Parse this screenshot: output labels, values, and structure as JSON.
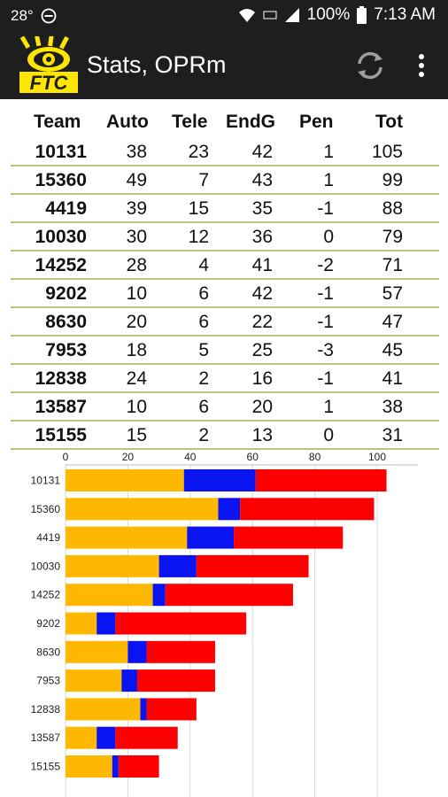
{
  "status_bar": {
    "temperature": "28°",
    "battery": "100%",
    "time": "7:13 AM"
  },
  "app_bar": {
    "logo_text": "FTC",
    "title": "Stats, OPRm",
    "refresh_icon": "refresh-icon",
    "menu_icon": "more-vert-icon"
  },
  "table": {
    "headers": [
      "Team",
      "Auto",
      "Tele",
      "EndG",
      "Pen",
      "Tot"
    ],
    "rows": [
      {
        "team": "10131",
        "auto": "38",
        "tele": "23",
        "endg": "42",
        "pen": "1",
        "tot": "105"
      },
      {
        "team": "15360",
        "auto": "49",
        "tele": "7",
        "endg": "43",
        "pen": "1",
        "tot": "99"
      },
      {
        "team": "4419",
        "auto": "39",
        "tele": "15",
        "endg": "35",
        "pen": "-1",
        "tot": "88"
      },
      {
        "team": "10030",
        "auto": "30",
        "tele": "12",
        "endg": "36",
        "pen": "0",
        "tot": "79"
      },
      {
        "team": "14252",
        "auto": "28",
        "tele": "4",
        "endg": "41",
        "pen": "-2",
        "tot": "71"
      },
      {
        "team": "9202",
        "auto": "10",
        "tele": "6",
        "endg": "42",
        "pen": "-1",
        "tot": "57"
      },
      {
        "team": "8630",
        "auto": "20",
        "tele": "6",
        "endg": "22",
        "pen": "-1",
        "tot": "47"
      },
      {
        "team": "7953",
        "auto": "18",
        "tele": "5",
        "endg": "25",
        "pen": "-3",
        "tot": "45"
      },
      {
        "team": "12838",
        "auto": "24",
        "tele": "2",
        "endg": "16",
        "pen": "-1",
        "tot": "41"
      },
      {
        "team": "13587",
        "auto": "10",
        "tele": "6",
        "endg": "20",
        "pen": "1",
        "tot": "38"
      },
      {
        "team": "15155",
        "auto": "15",
        "tele": "2",
        "endg": "13",
        "pen": "0",
        "tot": "31"
      }
    ]
  },
  "chart_data": {
    "type": "bar",
    "orientation": "horizontal",
    "stacked": true,
    "categories": [
      "10131",
      "15360",
      "4419",
      "10030",
      "14252",
      "9202",
      "8630",
      "7953",
      "12838",
      "13587",
      "15155"
    ],
    "series": [
      {
        "values": [
          38,
          49,
          39,
          30,
          28,
          10,
          20,
          18,
          24,
          10,
          15
        ],
        "color": "#ffb800"
      },
      {
        "values": [
          23,
          7,
          15,
          12,
          4,
          6,
          6,
          5,
          2,
          6,
          2
        ],
        "color": "#0a14f0"
      },
      {
        "values": [
          42,
          43,
          35,
          36,
          41,
          42,
          22,
          25,
          16,
          20,
          13
        ],
        "color": "#ff0000"
      }
    ],
    "xlim": [
      0,
      110
    ],
    "x_ticks": [
      0,
      20,
      40,
      60,
      80,
      100
    ],
    "grid": true,
    "axis_position": "top"
  }
}
